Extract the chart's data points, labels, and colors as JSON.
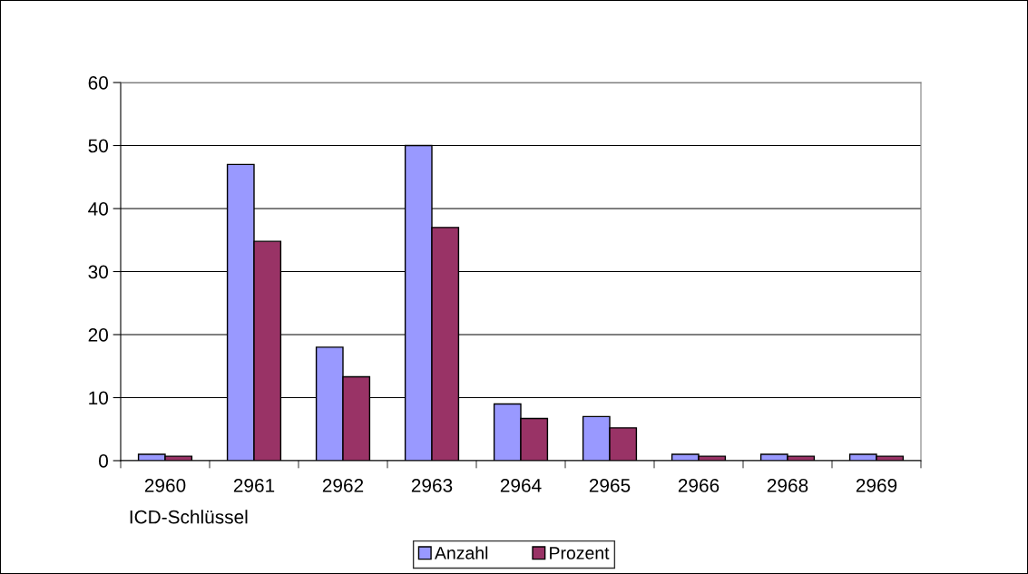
{
  "chart_data": {
    "type": "bar",
    "xlabel": "ICD-Schlüssel",
    "categories": [
      "2960",
      "2961",
      "2962",
      "2963",
      "2964",
      "2965",
      "2966",
      "2968",
      "2969"
    ],
    "series": [
      {
        "name": "Anzahl",
        "color": "#9999ff",
        "values": [
          1,
          47,
          18,
          50,
          9,
          7,
          1,
          1,
          1
        ]
      },
      {
        "name": "Prozent",
        "color": "#993366",
        "values": [
          0.7,
          34.8,
          13.3,
          37.0,
          6.7,
          5.2,
          0.7,
          0.7,
          0.7
        ]
      }
    ],
    "ylim": [
      0,
      60
    ],
    "yticks": [
      0,
      10,
      20,
      30,
      40,
      50,
      60
    ],
    "grid": "y",
    "legend": "bottom"
  }
}
